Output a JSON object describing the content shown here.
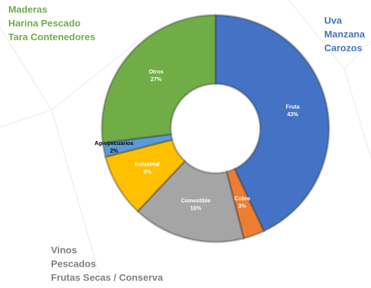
{
  "chart_data": {
    "type": "donut",
    "categories": [
      "Fruta",
      "Cobre",
      "Comestible",
      "Industrial",
      "Agropecuarios",
      "Otros"
    ],
    "values": [
      43,
      3,
      16,
      9,
      2,
      27
    ],
    "value_labels": [
      "43%",
      "3%",
      "16%",
      "9%",
      "2%",
      "27%"
    ],
    "colors": [
      "#4472c4",
      "#ed7d31",
      "#a5a5a5",
      "#ffc000",
      "#5b9bd5",
      "#70ad47"
    ],
    "annotations": [
      {
        "lines": [
          "Maderas",
          "Harina Pescado",
          "Tara Contenedores"
        ],
        "color": "#70ad47"
      },
      {
        "lines": [
          "Uva",
          "Manzana",
          "Carozos"
        ],
        "color": "#4472c4"
      },
      {
        "lines": [
          "Vinos",
          "Pescados",
          "Frutas Secas / Conserva"
        ],
        "color": "#7f7f7f"
      }
    ]
  }
}
